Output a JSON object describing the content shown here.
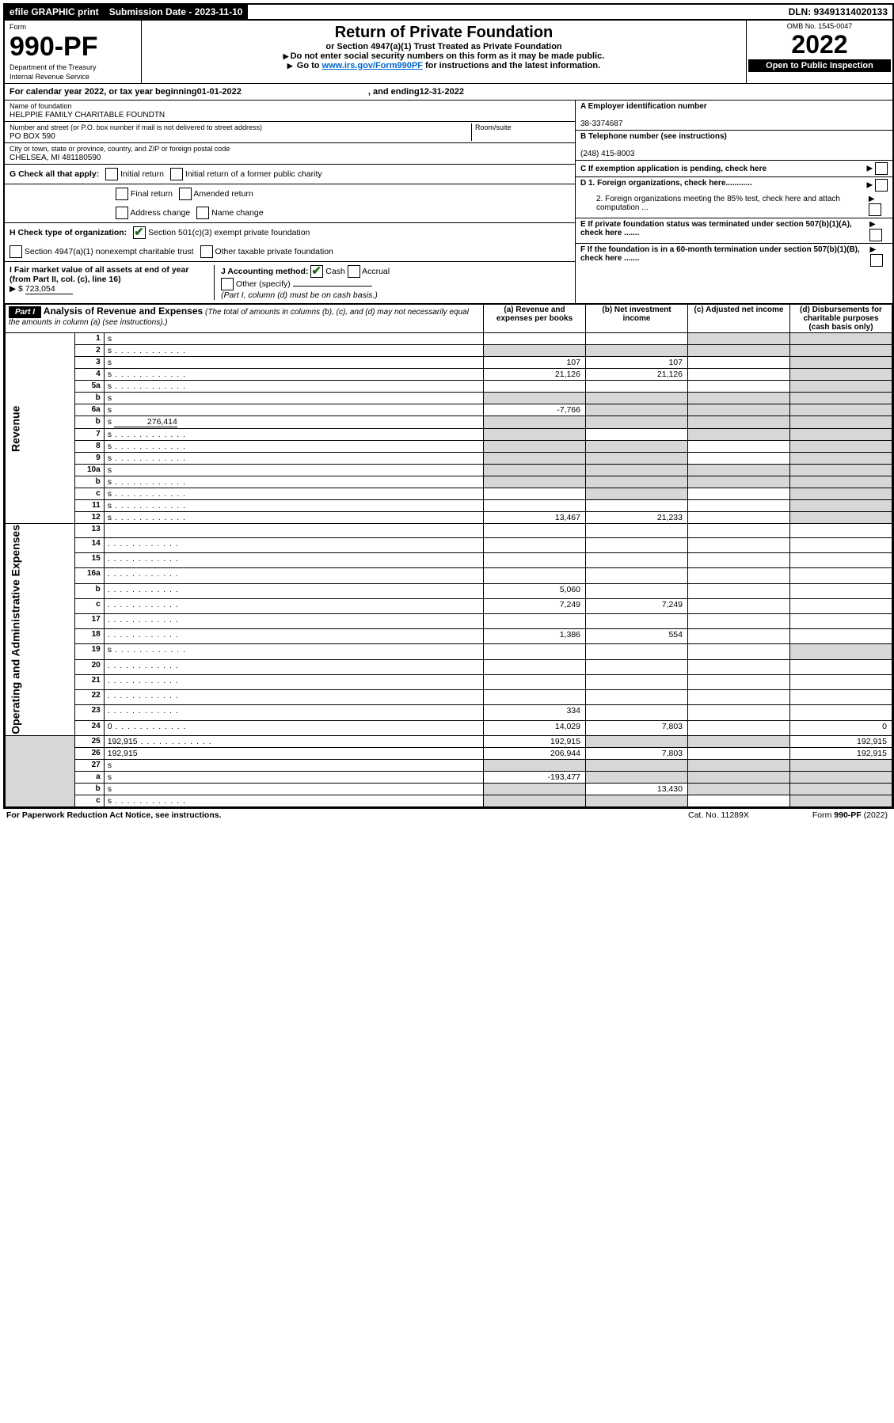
{
  "topbar": {
    "efile": "efile GRAPHIC print",
    "sub_label": "Submission Date - 2023-11-10",
    "dln": "DLN: 93491314020133"
  },
  "header": {
    "form_label": "Form",
    "form_no": "990-PF",
    "dept": "Department of the Treasury",
    "irs": "Internal Revenue Service",
    "title": "Return of Private Foundation",
    "subtitle": "or Section 4947(a)(1) Trust Treated as Private Foundation",
    "note1": "Do not enter social security numbers on this form as it may be made public.",
    "note2_pre": "Go to ",
    "note2_link": "www.irs.gov/Form990PF",
    "note2_post": " for instructions and the latest information.",
    "omb": "OMB No. 1545-0047",
    "year": "2022",
    "open": "Open to Public Inspection"
  },
  "cal": {
    "text_a": "For calendar year 2022, or tax year beginning ",
    "begin": "01-01-2022",
    "text_b": ", and ending ",
    "end": "12-31-2022"
  },
  "info": {
    "name_label": "Name of foundation",
    "name": "HELPPIE FAMILY CHARITABLE FOUNDTN",
    "addr_label": "Number and street (or P.O. box number if mail is not delivered to street address)",
    "addr": "PO BOX 590",
    "room_label": "Room/suite",
    "city_label": "City or town, state or province, country, and ZIP or foreign postal code",
    "city": "CHELSEA, MI  481180590",
    "a_label": "A Employer identification number",
    "a_val": "38-3374687",
    "b_label": "B Telephone number (see instructions)",
    "b_val": "(248) 415-8003",
    "c_label": "C If exemption application is pending, check here",
    "d1": "D 1. Foreign organizations, check here............",
    "d2": "2. Foreign organizations meeting the 85% test, check here and attach computation ...",
    "e_label": "E  If private foundation status was terminated under section 507(b)(1)(A), check here .......",
    "f_label": "F  If the foundation is in a 60-month termination under section 507(b)(1)(B), check here .......",
    "g_label": "G Check all that apply:",
    "g_opts": [
      "Initial return",
      "Initial return of a former public charity",
      "Final return",
      "Amended return",
      "Address change",
      "Name change"
    ],
    "h_label": "H Check type of organization:",
    "h1": "Section 501(c)(3) exempt private foundation",
    "h2": "Section 4947(a)(1) nonexempt charitable trust",
    "h3": "Other taxable private foundation",
    "i_label": "I Fair market value of all assets at end of year (from Part II, col. (c), line 16)",
    "i_val": "723,054",
    "j_label": "J Accounting method:",
    "j_cash": "Cash",
    "j_accrual": "Accrual",
    "j_other": "Other (specify)",
    "j_note": "(Part I, column (d) must be on cash basis.)"
  },
  "part1": {
    "label": "Part I",
    "title": "Analysis of Revenue and Expenses",
    "title_note": "(The total of amounts in columns (b), (c), and (d) may not necessarily equal the amounts in column (a) (see instructions).)",
    "col_a": "(a)  Revenue and expenses per books",
    "col_b": "(b)  Net investment income",
    "col_c": "(c)  Adjusted net income",
    "col_d": "(d)  Disbursements for charitable purposes (cash basis only)",
    "side_rev": "Revenue",
    "side_exp": "Operating and Administrative Expenses"
  },
  "rows": [
    {
      "n": "1",
      "d": "s",
      "a": "",
      "b": "",
      "c": "s"
    },
    {
      "n": "2",
      "d": "s",
      "dot": true,
      "a": "s",
      "b": "s",
      "c": "s"
    },
    {
      "n": "3",
      "d": "s",
      "a": "107",
      "b": "107",
      "c": ""
    },
    {
      "n": "4",
      "d": "s",
      "dot": true,
      "a": "21,126",
      "b": "21,126",
      "c": ""
    },
    {
      "n": "5a",
      "d": "s",
      "dot": true,
      "a": "",
      "b": "",
      "c": ""
    },
    {
      "n": "b",
      "d": "s",
      "inset": true,
      "a": "s",
      "b": "s",
      "c": "s"
    },
    {
      "n": "6a",
      "d": "s",
      "a": "-7,766",
      "b": "s",
      "c": "s"
    },
    {
      "n": "b",
      "d": "s",
      "inset": true,
      "iv": "276,414",
      "a": "s",
      "b": "s",
      "c": "s"
    },
    {
      "n": "7",
      "d": "s",
      "dot": true,
      "a": "s",
      "b": "",
      "c": "s"
    },
    {
      "n": "8",
      "d": "s",
      "dot": true,
      "a": "s",
      "b": "s",
      "c": ""
    },
    {
      "n": "9",
      "d": "s",
      "dot": true,
      "a": "s",
      "b": "s",
      "c": ""
    },
    {
      "n": "10a",
      "d": "s",
      "inset": true,
      "a": "s",
      "b": "s",
      "c": "s"
    },
    {
      "n": "b",
      "d": "s",
      "dot": true,
      "inset": true,
      "a": "s",
      "b": "s",
      "c": "s"
    },
    {
      "n": "c",
      "d": "s",
      "dot": true,
      "a": "",
      "b": "s",
      "c": ""
    },
    {
      "n": "11",
      "d": "s",
      "dot": true,
      "a": "",
      "b": "",
      "c": ""
    },
    {
      "n": "12",
      "d": "s",
      "dot": true,
      "a": "13,467",
      "b": "21,233",
      "c": ""
    },
    {
      "n": "13",
      "d": "",
      "a": "",
      "b": "",
      "c": ""
    },
    {
      "n": "14",
      "d": "",
      "dot": true,
      "a": "",
      "b": "",
      "c": ""
    },
    {
      "n": "15",
      "d": "",
      "dot": true,
      "a": "",
      "b": "",
      "c": ""
    },
    {
      "n": "16a",
      "d": "",
      "dot": true,
      "a": "",
      "b": "",
      "c": ""
    },
    {
      "n": "b",
      "d": "",
      "dot": true,
      "a": "5,060",
      "b": "",
      "c": ""
    },
    {
      "n": "c",
      "d": "",
      "dot": true,
      "a": "7,249",
      "b": "7,249",
      "c": ""
    },
    {
      "n": "17",
      "d": "",
      "dot": true,
      "a": "",
      "b": "",
      "c": ""
    },
    {
      "n": "18",
      "d": "",
      "dot": true,
      "a": "1,386",
      "b": "554",
      "c": ""
    },
    {
      "n": "19",
      "d": "s",
      "dot": true,
      "a": "",
      "b": "",
      "c": ""
    },
    {
      "n": "20",
      "d": "",
      "dot": true,
      "a": "",
      "b": "",
      "c": ""
    },
    {
      "n": "21",
      "d": "",
      "dot": true,
      "a": "",
      "b": "",
      "c": ""
    },
    {
      "n": "22",
      "d": "",
      "dot": true,
      "a": "",
      "b": "",
      "c": ""
    },
    {
      "n": "23",
      "d": "",
      "dot": true,
      "a": "334",
      "b": "",
      "c": ""
    },
    {
      "n": "24",
      "d": "0",
      "dot": true,
      "a": "14,029",
      "b": "7,803",
      "c": ""
    },
    {
      "n": "25",
      "d": "192,915",
      "dot": true,
      "a": "192,915",
      "b": "s",
      "c": "s"
    },
    {
      "n": "26",
      "d": "192,915",
      "a": "206,944",
      "b": "7,803",
      "c": ""
    },
    {
      "n": "27",
      "d": "s",
      "a": "s",
      "b": "s",
      "c": "s"
    },
    {
      "n": "a",
      "d": "s",
      "a": "-193,477",
      "b": "s",
      "c": "s"
    },
    {
      "n": "b",
      "d": "s",
      "a": "s",
      "b": "13,430",
      "c": "s"
    },
    {
      "n": "c",
      "d": "s",
      "dot": true,
      "a": "s",
      "b": "s",
      "c": ""
    }
  ],
  "footer": {
    "left": "For Paperwork Reduction Act Notice, see instructions.",
    "mid": "Cat. No. 11289X",
    "right": "Form 990-PF (2022)"
  }
}
